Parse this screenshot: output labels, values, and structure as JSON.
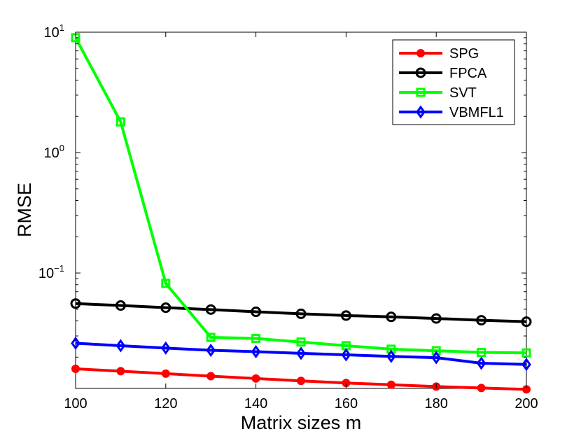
{
  "chart_data": {
    "type": "line",
    "title": "",
    "xlabel": "Matrix sizes m",
    "ylabel": "RMSE",
    "yscale": "log",
    "xlim": [
      100,
      200
    ],
    "ylim": [
      0.011,
      10
    ],
    "grid": false,
    "legend_position": "top-right",
    "x": [
      100,
      110,
      120,
      130,
      140,
      150,
      160,
      170,
      180,
      190,
      200
    ],
    "x_ticks": [
      "100",
      "120",
      "140",
      "160",
      "180",
      "200"
    ],
    "y_ticks": [
      {
        "base": "10",
        "exp": "1"
      },
      {
        "base": "10",
        "exp": "0"
      },
      {
        "base": "10",
        "exp": "−1"
      }
    ],
    "series": [
      {
        "name": "SPG",
        "color": "#ff0000",
        "marker": "filled-circle",
        "values": [
          0.016,
          0.0153,
          0.0146,
          0.0139,
          0.0133,
          0.0127,
          0.0122,
          0.0118,
          0.0114,
          0.0111,
          0.0108
        ]
      },
      {
        "name": "FPCA",
        "color": "#000000",
        "marker": "open-circle",
        "values": [
          0.0557,
          0.0537,
          0.0515,
          0.0497,
          0.0476,
          0.0458,
          0.0443,
          0.0432,
          0.0419,
          0.0405,
          0.0394
        ]
      },
      {
        "name": "SVT",
        "color": "#00ff00",
        "marker": "square",
        "values": [
          9.0,
          1.8,
          0.082,
          0.0292,
          0.0286,
          0.0267,
          0.0249,
          0.0233,
          0.0226,
          0.0219,
          0.0217
        ]
      },
      {
        "name": "VBMFL1",
        "color": "#0000ff",
        "marker": "diamond",
        "values": [
          0.0261,
          0.0249,
          0.0238,
          0.0228,
          0.0222,
          0.0215,
          0.0209,
          0.0203,
          0.0198,
          0.0178,
          0.0174
        ]
      }
    ]
  }
}
